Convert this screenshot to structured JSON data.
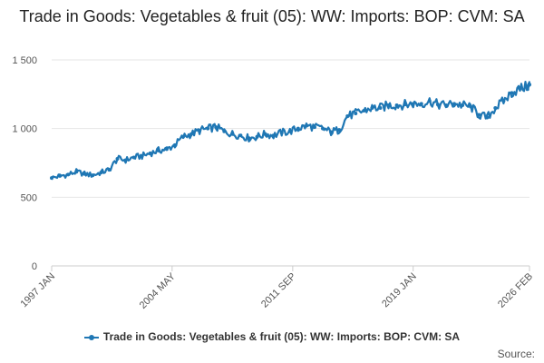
{
  "chart_data": {
    "type": "line",
    "title": "Trade in Goods: Vegetables & fruit (05): WW: Imports: BOP: CVM: SA",
    "xlabel": "",
    "ylabel": "",
    "ylim": [
      0,
      1500
    ],
    "y_ticks": [
      0,
      500,
      1000,
      1500
    ],
    "y_tick_labels": [
      "0",
      "500",
      "1 000",
      "1 500"
    ],
    "x_ticks": [
      "1997 JAN",
      "2004 MAY",
      "2011 SEP",
      "2019 JAN",
      "2026 FEB"
    ],
    "x_tick_positions": [
      1997.0,
      2004.33,
      2011.67,
      2019.0,
      2026.08
    ],
    "xlim": [
      1997.0,
      2026.08
    ],
    "grid": true,
    "legend_position": "bottom",
    "series": [
      {
        "name": "Trade in Goods: Vegetables & fruit (05): WW: Imports: BOP: CVM: SA",
        "color": "#1f77b4",
        "x": [
          1997.0,
          1997.5,
          1998.0,
          1998.5,
          1999.0,
          1999.5,
          2000.0,
          2000.5,
          2001.0,
          2001.5,
          2002.0,
          2002.5,
          2003.0,
          2003.5,
          2004.0,
          2004.5,
          2005.0,
          2005.5,
          2006.0,
          2006.5,
          2007.0,
          2007.5,
          2008.0,
          2008.5,
          2009.0,
          2009.5,
          2010.0,
          2010.5,
          2011.0,
          2011.5,
          2012.0,
          2012.5,
          2013.0,
          2013.5,
          2014.0,
          2014.5,
          2015.0,
          2015.5,
          2016.0,
          2016.5,
          2017.0,
          2017.5,
          2018.0,
          2018.5,
          2019.0,
          2019.5,
          2020.0,
          2020.5,
          2021.0,
          2021.5,
          2022.0,
          2022.5,
          2023.0,
          2023.5,
          2024.0,
          2024.5,
          2025.0,
          2025.5,
          2026.0,
          2026.08
        ],
        "values": [
          640,
          655,
          665,
          685,
          670,
          660,
          680,
          700,
          780,
          770,
          790,
          800,
          820,
          840,
          850,
          880,
          940,
          960,
          985,
          1000,
          1010,
          980,
          960,
          950,
          930,
          940,
          960,
          950,
          970,
          980,
          1000,
          1020,
          1010,
          1000,
          975,
          990,
          1090,
          1110,
          1130,
          1150,
          1150,
          1170,
          1170,
          1175,
          1180,
          1180,
          1200,
          1175,
          1170,
          1180,
          1170,
          1160,
          1100,
          1080,
          1150,
          1200,
          1260,
          1290,
          1310,
          1320
        ]
      }
    ]
  },
  "legend": {
    "label": "Trade in Goods: Vegetables & fruit (05): WW: Imports: BOP: CVM: SA"
  },
  "source_label": "Source:"
}
